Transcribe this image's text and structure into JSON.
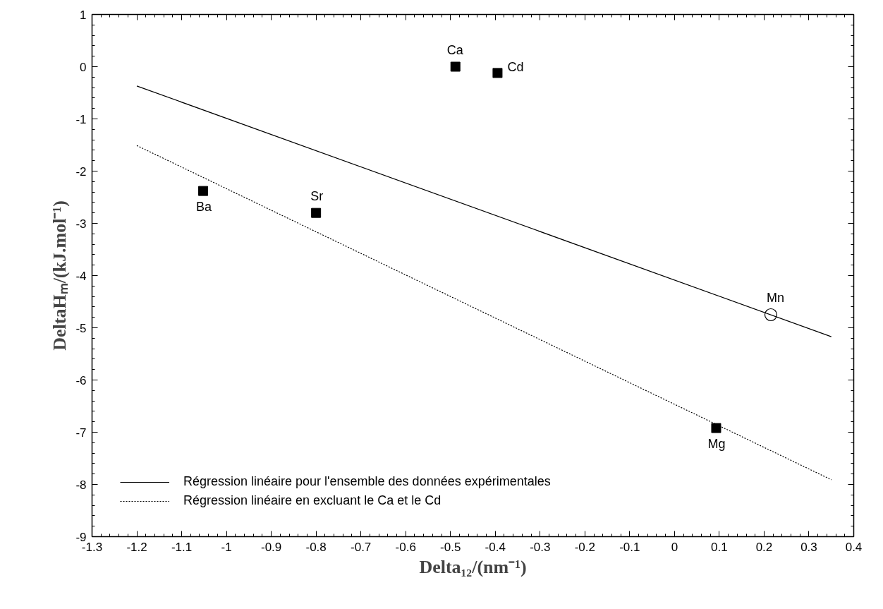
{
  "chart_data": {
    "type": "scatter",
    "xlabel": "Delta₁₂/(nm⁻¹)",
    "ylabel": "DeltaHₘ/(kJ.mol⁻¹)",
    "xlim": [
      -1.3,
      0.4
    ],
    "ylim": [
      -9,
      1
    ],
    "xticks": [
      -1.3,
      -1.2,
      -1.1,
      -1,
      -0.9,
      -0.8,
      -0.7,
      -0.6,
      -0.5,
      -0.4,
      -0.3,
      -0.2,
      -0.1,
      0,
      0.1,
      0.2,
      0.3,
      0.4
    ],
    "yticks": [
      1,
      0,
      -1,
      -2,
      -3,
      -4,
      -5,
      -6,
      -7,
      -8,
      -9
    ],
    "grid": false,
    "legend": "bottom left",
    "series": [
      {
        "marker": "square",
        "color": "#000000",
        "x": [
          -1.052,
          -0.8,
          -0.489,
          -0.395,
          0.093
        ],
        "values": [
          -2.38,
          -2.8,
          0.0,
          -0.12,
          -6.92
        ]
      },
      {
        "marker": "circle",
        "color": "#000000",
        "x": [
          0.215
        ],
        "values": [
          -4.75
        ]
      },
      {
        "type": "line",
        "name": "Régression linéaire pour l'ensemble des données expérimentales",
        "line_style": "solid",
        "color": "#000000",
        "x": [
          -1.2,
          0.35
        ],
        "values": [
          -0.37,
          -5.17
        ]
      },
      {
        "type": "line",
        "name": "Régression linéaire en excluant le Ca et le Cd",
        "line_style": "dotted",
        "color": "#000000",
        "x": [
          -1.2,
          0.35
        ],
        "values": [
          -1.51,
          -7.91
        ]
      }
    ],
    "annotations": [
      {
        "text": "Ba",
        "x": -1.052,
        "y": -2.38
      },
      {
        "text": "Sr",
        "x": -0.8,
        "y": -2.8
      },
      {
        "text": "Ca",
        "x": -0.489,
        "y": 0.0
      },
      {
        "text": "Cd",
        "x": -0.395,
        "y": -0.12
      },
      {
        "text": "Mn",
        "x": 0.215,
        "y": -4.75
      },
      {
        "text": "Mg",
        "x": 0.093,
        "y": -6.92
      }
    ]
  }
}
